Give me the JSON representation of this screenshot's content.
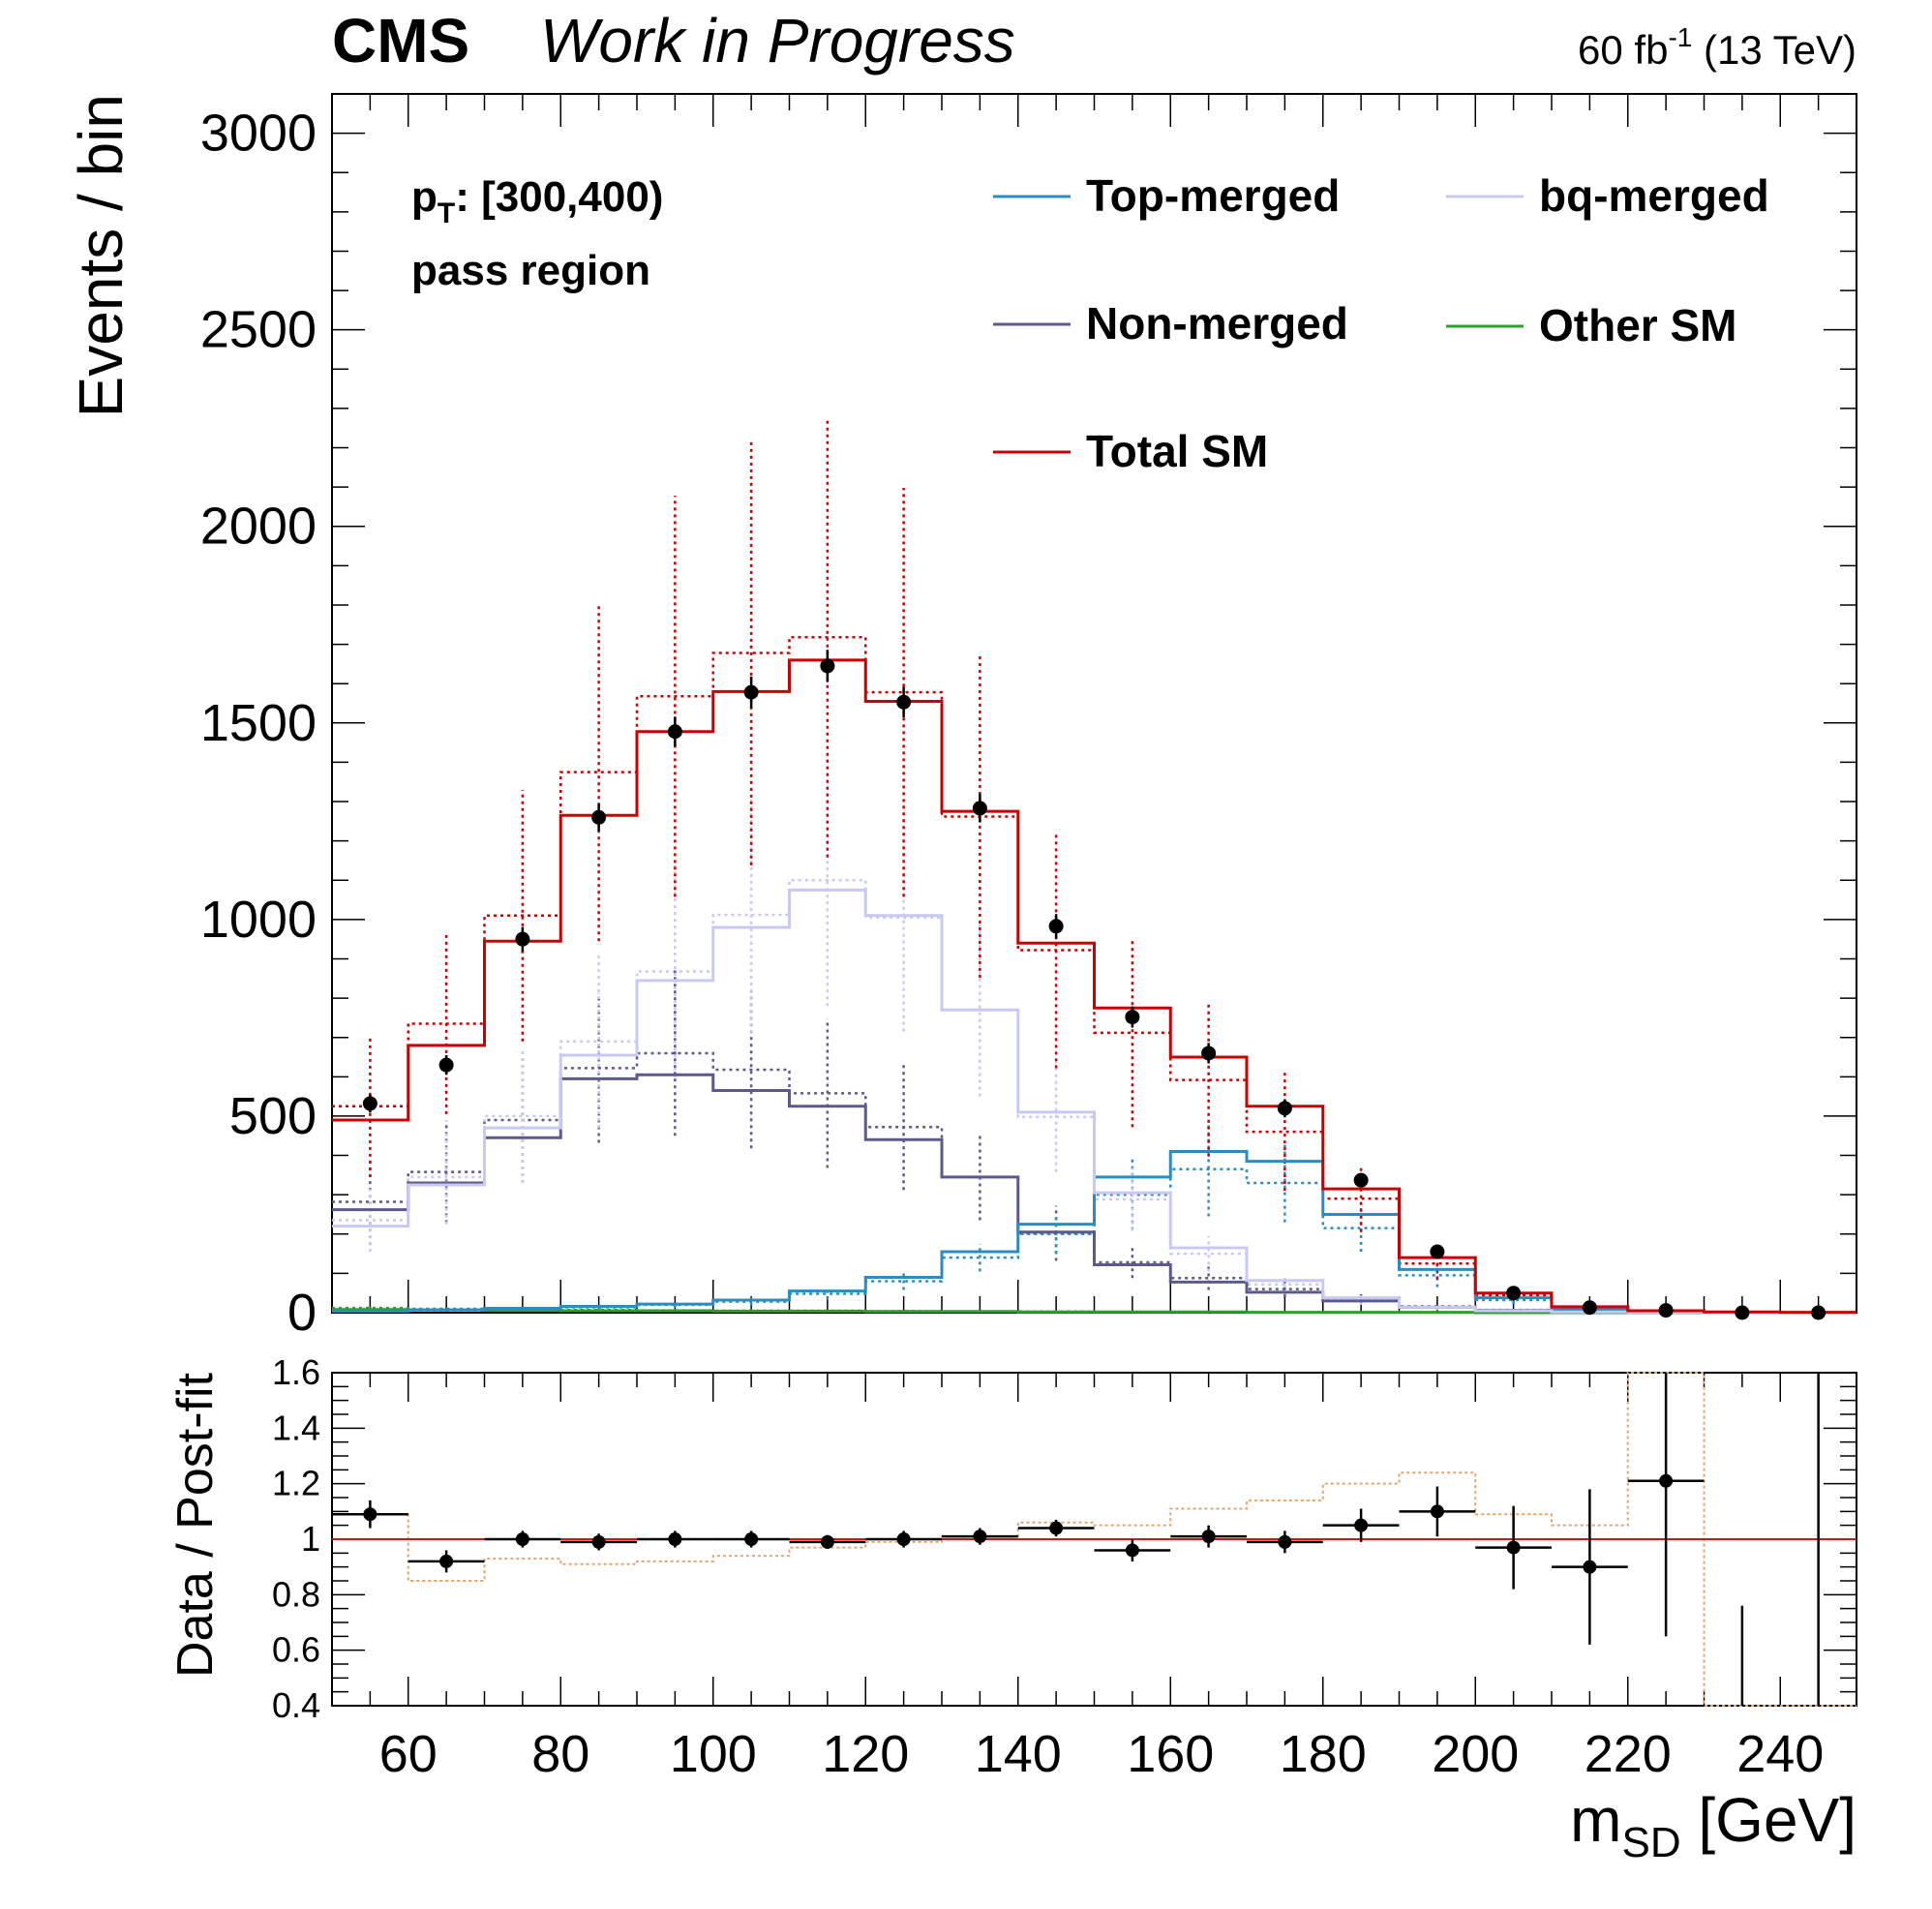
{
  "header": {
    "experiment": "CMS",
    "status": "Work in Progress",
    "lumi_value": "60 fb",
    "lumi_exp": "-1",
    "energy": " (13 TeV)"
  },
  "annotations": {
    "pt_main": "p",
    "pt_sub": "T",
    "pt_range": ": [300,400)",
    "region": "pass region"
  },
  "axes": {
    "top_ylabel": "Events / bin",
    "bottom_ylabel": "Data / Post-fit",
    "xlabel_main": "m",
    "xlabel_sub": "SD",
    "xlabel_unit": " [GeV]",
    "x_ticks": [
      "60",
      "80",
      "100",
      "120",
      "140",
      "160",
      "180",
      "200",
      "220",
      "240"
    ],
    "top_y_ticks": [
      "0",
      "500",
      "1000",
      "1500",
      "2000",
      "2500",
      "3000"
    ],
    "bottom_y_ticks": [
      "0.4",
      "0.6",
      "0.8",
      "1",
      "1.2",
      "1.4",
      "1.6"
    ]
  },
  "legend": [
    "Top-merged",
    "bq-merged",
    "Non-merged",
    "Other SM",
    "Total SM"
  ],
  "colors": {
    "top_merged": "#2b8cc4",
    "bq_merged": "#c8c8f5",
    "non_merged": "#5a5a8c",
    "other_sm": "#2ca02c",
    "total_sm": "#cc0000",
    "data": "#000000",
    "ratio_band": "#e8a36a",
    "ratio_line": "#ff0000"
  },
  "chart_data": [
    {
      "type": "line",
      "panel": "top",
      "style": "step histogram",
      "xlim": [
        50,
        250
      ],
      "ylim": [
        0,
        3100
      ],
      "bin_edges": [
        50,
        60,
        70,
        80,
        90,
        100,
        110,
        120,
        130,
        140,
        150,
        160,
        170,
        180,
        190,
        200,
        210,
        220,
        230,
        240,
        250
      ],
      "series": [
        {
          "name": "Total SM",
          "postfit": [
            490,
            680,
            945,
            1265,
            1478,
            1580,
            1660,
            1555,
            1275,
            940,
            775,
            650,
            525,
            315,
            140,
            50,
            15,
            5,
            2,
            1
          ],
          "prefit": [
            525,
            735,
            1010,
            1375,
            1568,
            1678,
            1718,
            1578,
            1262,
            922,
            712,
            592,
            460,
            290,
            125,
            45,
            14,
            5,
            2,
            1
          ],
          "prefit_unc": [
            180,
            230,
            320,
            430,
            510,
            540,
            560,
            520,
            410,
            300,
            240,
            195,
            150,
            85,
            40,
            15,
            5,
            2,
            1,
            1
          ]
        },
        {
          "name": "Top-merged",
          "postfit": [
            4,
            7,
            11,
            16,
            22,
            32,
            55,
            90,
            155,
            225,
            345,
            410,
            385,
            250,
            110,
            38,
            10,
            3,
            1,
            0
          ],
          "prefit": [
            4,
            6,
            10,
            14,
            20,
            28,
            48,
            80,
            140,
            200,
            300,
            365,
            330,
            215,
            95,
            32,
            9,
            3,
            1,
            0
          ],
          "prefit_unc": [
            2,
            3,
            4,
            6,
            8,
            10,
            15,
            22,
            35,
            50,
            90,
            120,
            100,
            60,
            30,
            10,
            3,
            1,
            1,
            0
          ]
        },
        {
          "name": "bq-merged",
          "postfit": [
            220,
            325,
            470,
            655,
            845,
            980,
            1075,
            1010,
            770,
            510,
            305,
            165,
            82,
            38,
            14,
            5,
            2,
            1,
            0,
            0
          ],
          "prefit": [
            235,
            345,
            500,
            690,
            868,
            1012,
            1100,
            1005,
            770,
            498,
            288,
            150,
            72,
            32,
            12,
            4,
            2,
            1,
            0,
            0
          ],
          "prefit_unc": [
            80,
            120,
            170,
            220,
            270,
            300,
            320,
            290,
            220,
            140,
            80,
            45,
            25,
            12,
            5,
            2,
            1,
            0,
            0,
            0
          ]
        },
        {
          "name": "Non-merged",
          "postfit": [
            262,
            330,
            445,
            595,
            605,
            565,
            525,
            440,
            345,
            205,
            122,
            78,
            52,
            30,
            14,
            6,
            3,
            1,
            0,
            0
          ],
          "prefit": [
            282,
            358,
            490,
            622,
            660,
            618,
            558,
            472,
            345,
            202,
            128,
            88,
            60,
            35,
            16,
            7,
            3,
            1,
            0,
            0
          ],
          "prefit_unc": [
            110,
            130,
            160,
            190,
            210,
            200,
            190,
            160,
            110,
            70,
            40,
            30,
            20,
            12,
            5,
            2,
            1,
            0,
            0,
            0
          ]
        },
        {
          "name": "Other SM",
          "postfit": [
            8,
            7,
            6,
            5,
            5,
            4,
            4,
            3,
            3,
            2,
            2,
            2,
            1,
            1,
            1,
            0,
            0,
            0,
            0,
            0
          ],
          "prefit": [
            12,
            10,
            8,
            7,
            6,
            5,
            5,
            4,
            3,
            3,
            2,
            2,
            1,
            1,
            1,
            0,
            0,
            0,
            0,
            0
          ],
          "prefit_unc": [
            4,
            3,
            3,
            2,
            2,
            2,
            2,
            1,
            1,
            1,
            1,
            1,
            0,
            0,
            0,
            0,
            0,
            0,
            0,
            0
          ]
        }
      ],
      "data_points": {
        "x": [
          55,
          65,
          75,
          85,
          95,
          105,
          115,
          125,
          135,
          145,
          155,
          165,
          175,
          185,
          195,
          205,
          215,
          225,
          235,
          245
        ],
        "y": [
          532,
          630,
          950,
          1260,
          1478,
          1578,
          1645,
          1553,
          1283,
          983,
          752,
          660,
          520,
          337,
          155,
          50,
          13,
          6,
          0,
          0
        ],
        "err": [
          23,
          25,
          31,
          35,
          38,
          40,
          41,
          39,
          36,
          31,
          27,
          26,
          23,
          18,
          12,
          7,
          4,
          2,
          0,
          0
        ]
      },
      "title": "",
      "xlabel": "",
      "ylabel": "Events / bin"
    },
    {
      "type": "scatter",
      "panel": "bottom",
      "xlim": [
        50,
        250
      ],
      "ylim": [
        0.4,
        1.6
      ],
      "x": [
        55,
        65,
        75,
        85,
        95,
        105,
        115,
        125,
        135,
        145,
        155,
        165,
        175,
        185,
        195,
        205,
        215,
        225,
        235,
        245
      ],
      "y": [
        1.09,
        0.92,
        1.0,
        0.99,
        1.0,
        1.0,
        0.99,
        1.0,
        1.01,
        1.04,
        0.96,
        1.01,
        0.99,
        1.05,
        1.1,
        0.97,
        0.9,
        1.21,
        null,
        null
      ],
      "err_y": [
        0.05,
        0.04,
        0.03,
        0.03,
        0.03,
        0.03,
        0.025,
        0.03,
        0.03,
        0.03,
        0.04,
        0.04,
        0.04,
        0.06,
        0.09,
        0.15,
        0.28,
        0.56,
        null,
        null
      ],
      "err_up_only": {
        "x": [
          235,
          245
        ],
        "y_high": [
          0.76,
          1.6
        ]
      },
      "reference_line": 1.0,
      "prefit_over_postfit_step": [
        1.09,
        0.85,
        0.93,
        0.91,
        0.92,
        0.94,
        0.97,
        0.99,
        1.01,
        1.06,
        1.05,
        1.11,
        1.14,
        1.2,
        1.24,
        1.09,
        1.05,
        1.6,
        0.4,
        0.4
      ],
      "title": "",
      "xlabel": "m_SD [GeV]",
      "ylabel": "Data / Post-fit"
    }
  ]
}
